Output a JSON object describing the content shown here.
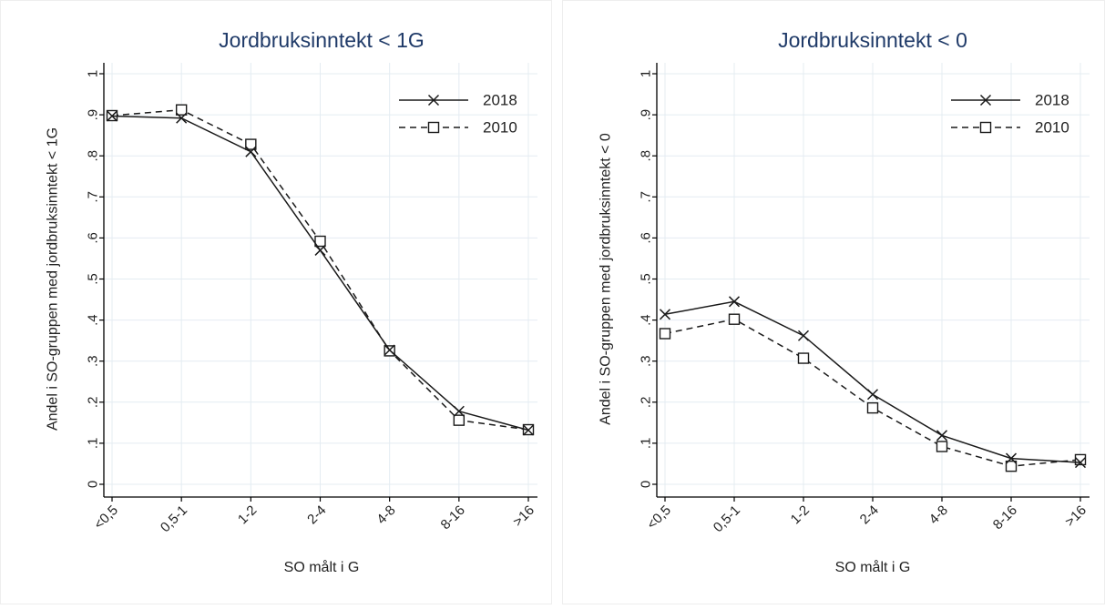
{
  "chart_data": [
    {
      "type": "line",
      "title": "Jordbruksinntekt < 1G",
      "xlabel": "SO målt i G",
      "ylabel": "Andel i SO-gruppen med jordbruksinntekt < 1G",
      "categories": [
        "<0,5",
        "0,5-1",
        "1-2",
        "2-4",
        "4-8",
        "8-16",
        ">16"
      ],
      "yticks": [
        "0",
        ".1",
        ".2",
        ".3",
        ".4",
        ".5",
        ".6",
        ".7",
        ".8",
        ".9",
        "1"
      ],
      "ylim": [
        0,
        1
      ],
      "grid": true,
      "legend_position": "top-right",
      "series": [
        {
          "name": "2018",
          "marker": "x",
          "dash": "solid",
          "values": [
            0.897,
            0.892,
            0.81,
            0.57,
            0.327,
            0.178,
            0.132
          ]
        },
        {
          "name": "2010",
          "marker": "square",
          "dash": "dashed",
          "values": [
            0.898,
            0.912,
            0.828,
            0.592,
            0.325,
            0.156,
            0.133
          ]
        }
      ]
    },
    {
      "type": "line",
      "title": "Jordbruksinntekt < 0",
      "xlabel": "SO målt i G",
      "ylabel": "Andel i SO-gruppen med jordbruksinntekt < 0",
      "categories": [
        "<0,5",
        "0,5-1",
        "1-2",
        "2-4",
        "4-8",
        "8-16",
        ">16"
      ],
      "yticks": [
        "0",
        ".1",
        ".2",
        ".3",
        ".4",
        ".5",
        ".6",
        ".7",
        ".8",
        ".9",
        "1"
      ],
      "ylim": [
        0,
        1
      ],
      "grid": true,
      "legend_position": "top-right",
      "series": [
        {
          "name": "2018",
          "marker": "x",
          "dash": "solid",
          "values": [
            0.414,
            0.445,
            0.362,
            0.219,
            0.119,
            0.063,
            0.053
          ]
        },
        {
          "name": "2010",
          "marker": "square",
          "dash": "dashed",
          "values": [
            0.367,
            0.402,
            0.307,
            0.186,
            0.092,
            0.044,
            0.06
          ]
        }
      ]
    }
  ],
  "colors": {
    "title": "#1f3a68",
    "line": "#1a1a1a",
    "grid": "#e4ecf2",
    "axis": "#000000",
    "background": "#ffffff",
    "panel_border": "#eeeeee"
  }
}
